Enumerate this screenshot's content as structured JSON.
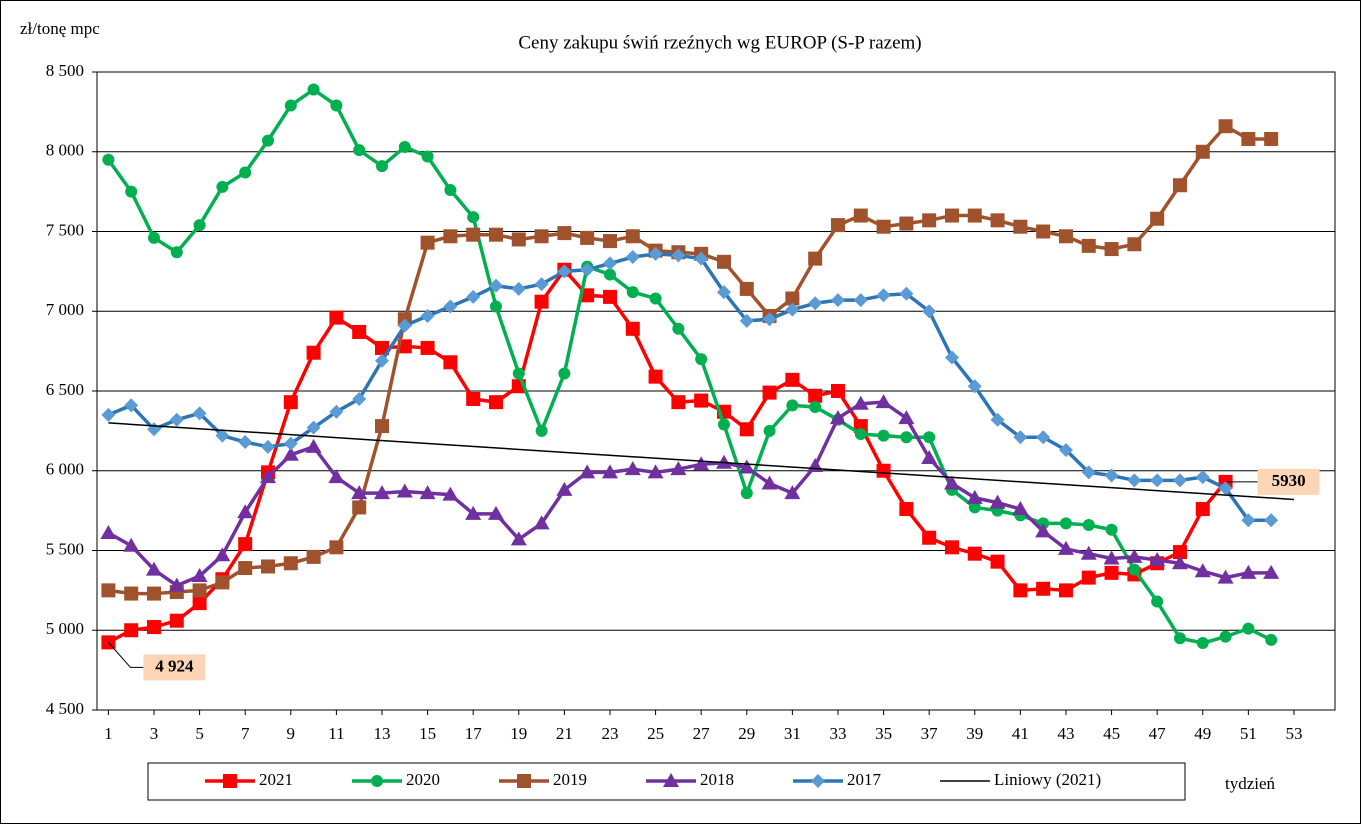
{
  "chart_data": {
    "type": "line",
    "title": "Ceny zakupu świń rzeźnych wg EUROP (S-P razem)",
    "y_label": "zł/tonę mpc",
    "x_label": "tydzień",
    "x": [
      1,
      2,
      3,
      4,
      5,
      6,
      7,
      8,
      9,
      10,
      11,
      12,
      13,
      14,
      15,
      16,
      17,
      18,
      19,
      20,
      21,
      22,
      23,
      24,
      25,
      26,
      27,
      28,
      29,
      30,
      31,
      32,
      33,
      34,
      35,
      36,
      37,
      38,
      39,
      40,
      41,
      42,
      43,
      44,
      45,
      46,
      47,
      48,
      49,
      50,
      51,
      52
    ],
    "xlim": [
      0.5,
      54.8
    ],
    "xticks": [
      1,
      3,
      5,
      7,
      9,
      11,
      13,
      15,
      17,
      19,
      21,
      23,
      25,
      27,
      29,
      31,
      33,
      35,
      37,
      39,
      41,
      43,
      45,
      47,
      49,
      51,
      53
    ],
    "ylim": [
      4500,
      8500
    ],
    "yticks": [
      {
        "value": 4500,
        "label": "4 500"
      },
      {
        "value": 5000,
        "label": "5 000"
      },
      {
        "value": 5500,
        "label": "5 500"
      },
      {
        "value": 6000,
        "label": "6 000"
      },
      {
        "value": 6500,
        "label": "6 500"
      },
      {
        "value": 7000,
        "label": "7 000"
      },
      {
        "value": 7500,
        "label": "7 500"
      },
      {
        "value": 8000,
        "label": "8 000"
      },
      {
        "value": 8500,
        "label": "8 500"
      }
    ],
    "grid": true,
    "legend": "bottom",
    "series": [
      {
        "name": "2021",
        "color": "#ff0000",
        "marker": "square",
        "values": [
          4924,
          5000,
          5020,
          5060,
          5170,
          5320,
          5540,
          5990,
          6430,
          6740,
          6960,
          6870,
          6770,
          6780,
          6770,
          6680,
          6450,
          6430,
          6530,
          7060,
          7260,
          7100,
          7090,
          6890,
          6590,
          6430,
          6440,
          6370,
          6260,
          6490,
          6570,
          6470,
          6500,
          6280,
          6000,
          5760,
          5580,
          5520,
          5480,
          5430,
          5250,
          5260,
          5250,
          5330,
          5360,
          5350,
          5420,
          5490,
          5760,
          5930,
          null,
          null
        ],
        "value_labels": [
          "4 924",
          null,
          null,
          null,
          null,
          null,
          null,
          null,
          null,
          null,
          null,
          null,
          null,
          null,
          null,
          null,
          null,
          null,
          null,
          null,
          null,
          null,
          null,
          null,
          null,
          null,
          null,
          null,
          null,
          null,
          null,
          null,
          null,
          null,
          null,
          null,
          null,
          null,
          null,
          null,
          null,
          null,
          null,
          null,
          null,
          null,
          null,
          null,
          null,
          "5930",
          null,
          null
        ]
      },
      {
        "name": "2020",
        "color": "#00b050",
        "marker": "circle",
        "values": [
          7950,
          7750,
          7460,
          7370,
          7540,
          7780,
          7870,
          8070,
          8290,
          8390,
          8290,
          8010,
          7910,
          8030,
          7970,
          7760,
          7590,
          7030,
          6610,
          6250,
          6610,
          7280,
          7230,
          7120,
          7080,
          6890,
          6700,
          6290,
          5860,
          6250,
          6410,
          6400,
          6320,
          6230,
          6220,
          6210,
          6210,
          5880,
          5770,
          5750,
          5720,
          5670,
          5670,
          5660,
          5630,
          5380,
          5180,
          4950,
          4920,
          4960,
          5010,
          4940
        ]
      },
      {
        "name": "2019",
        "color": "#a0522d",
        "marker": "square",
        "values": [
          5250,
          5230,
          5230,
          5240,
          5250,
          5300,
          5390,
          5400,
          5420,
          5460,
          5520,
          5770,
          6280,
          6950,
          7430,
          7470,
          7480,
          7480,
          7450,
          7470,
          7490,
          7460,
          7440,
          7470,
          7380,
          7370,
          7360,
          7310,
          7140,
          6970,
          7080,
          7330,
          7540,
          7600,
          7530,
          7550,
          7570,
          7600,
          7600,
          7570,
          7530,
          7500,
          7470,
          7410,
          7390,
          7420,
          7580,
          7790,
          8000,
          8160,
          8080,
          8080
        ]
      },
      {
        "name": "2018",
        "color": "#7030a0",
        "marker": "triangle",
        "values": [
          5610,
          5530,
          5380,
          5280,
          5340,
          5470,
          5740,
          5960,
          6100,
          6150,
          5960,
          5860,
          5860,
          5870,
          5860,
          5850,
          5730,
          5730,
          5570,
          5670,
          5880,
          5990,
          5990,
          6010,
          5990,
          6010,
          6040,
          6050,
          6020,
          5920,
          5860,
          6030,
          6330,
          6420,
          6430,
          6330,
          6080,
          5920,
          5830,
          5800,
          5760,
          5620,
          5510,
          5480,
          5450,
          5460,
          5440,
          5420,
          5370,
          5330,
          5360,
          5360
        ]
      },
      {
        "name": "2017",
        "color": "#2e75b6",
        "marker": "diamond",
        "marker_color": "#5b9bd5",
        "values": [
          6350,
          6410,
          6260,
          6320,
          6360,
          6220,
          6180,
          6150,
          6170,
          6270,
          6370,
          6450,
          6690,
          6910,
          6970,
          7030,
          7090,
          7160,
          7140,
          7170,
          7250,
          7260,
          7300,
          7340,
          7360,
          7350,
          7330,
          7120,
          6940,
          6950,
          7010,
          7050,
          7070,
          7070,
          7100,
          7110,
          7000,
          6710,
          6530,
          6320,
          6210,
          6210,
          6130,
          5990,
          5970,
          5940,
          5940,
          5940,
          5960,
          5890,
          5690,
          5690
        ]
      },
      {
        "name": "Liniowy (2021)",
        "color": "#000000",
        "marker": "none",
        "x": [
          1,
          53
        ],
        "values": [
          6300,
          5820
        ]
      }
    ]
  }
}
